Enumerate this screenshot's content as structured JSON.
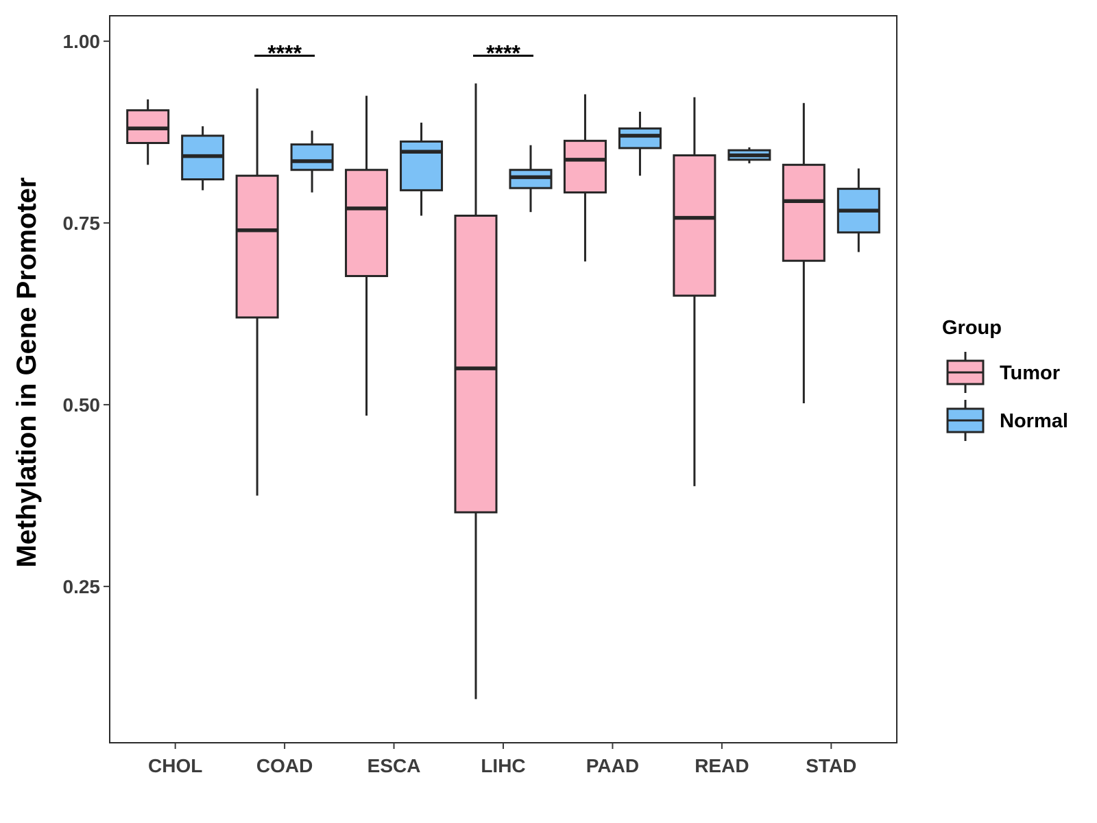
{
  "chart_data": {
    "type": "boxplot",
    "title": "",
    "xlabel": "",
    "ylabel": "Methylation in Gene Promoter",
    "ylim": [
      0.035,
      1.035
    ],
    "yticks": [
      0.25,
      0.5,
      0.75,
      1.0
    ],
    "ytick_labels": [
      "0.25",
      "0.50",
      "0.75",
      "1.00"
    ],
    "grid": false,
    "legend": {
      "title": "Group",
      "position": "right",
      "entries": [
        {
          "label": "Tumor",
          "color": "#FBB1C3"
        },
        {
          "label": "Normal",
          "color": "#7CC1F6"
        }
      ]
    },
    "categories": [
      "CHOL",
      "COAD",
      "ESCA",
      "LIHC",
      "PAAD",
      "READ",
      "STAD"
    ],
    "series": [
      {
        "name": "Tumor",
        "color": "#FBB1C3",
        "boxes": [
          {
            "whislo": 0.83,
            "q1": 0.86,
            "med": 0.88,
            "q3": 0.905,
            "whishi": 0.92
          },
          {
            "whislo": 0.375,
            "q1": 0.62,
            "med": 0.74,
            "q3": 0.815,
            "whishi": 0.935
          },
          {
            "whislo": 0.485,
            "q1": 0.677,
            "med": 0.77,
            "q3": 0.823,
            "whishi": 0.925
          },
          {
            "whislo": 0.095,
            "q1": 0.352,
            "med": 0.55,
            "q3": 0.76,
            "whishi": 0.942
          },
          {
            "whislo": 0.697,
            "q1": 0.792,
            "med": 0.837,
            "q3": 0.863,
            "whishi": 0.927
          },
          {
            "whislo": 0.388,
            "q1": 0.65,
            "med": 0.757,
            "q3": 0.843,
            "whishi": 0.923
          },
          {
            "whislo": 0.502,
            "q1": 0.698,
            "med": 0.78,
            "q3": 0.83,
            "whishi": 0.915
          }
        ]
      },
      {
        "name": "Normal",
        "color": "#7CC1F6",
        "boxes": [
          {
            "whislo": 0.795,
            "q1": 0.81,
            "med": 0.842,
            "q3": 0.87,
            "whishi": 0.883
          },
          {
            "whislo": 0.792,
            "q1": 0.823,
            "med": 0.835,
            "q3": 0.858,
            "whishi": 0.877
          },
          {
            "whislo": 0.76,
            "q1": 0.795,
            "med": 0.848,
            "q3": 0.862,
            "whishi": 0.888
          },
          {
            "whislo": 0.765,
            "q1": 0.798,
            "med": 0.813,
            "q3": 0.823,
            "whishi": 0.857
          },
          {
            "whislo": 0.815,
            "q1": 0.853,
            "med": 0.87,
            "q3": 0.88,
            "whishi": 0.903
          },
          {
            "whislo": 0.832,
            "q1": 0.837,
            "med": 0.843,
            "q3": 0.85,
            "whishi": 0.854
          },
          {
            "whislo": 0.71,
            "q1": 0.737,
            "med": 0.767,
            "q3": 0.797,
            "whishi": 0.825
          }
        ]
      }
    ],
    "annotations": [
      {
        "category": "COAD",
        "text": "****"
      },
      {
        "category": "LIHC",
        "text": "****"
      }
    ]
  }
}
